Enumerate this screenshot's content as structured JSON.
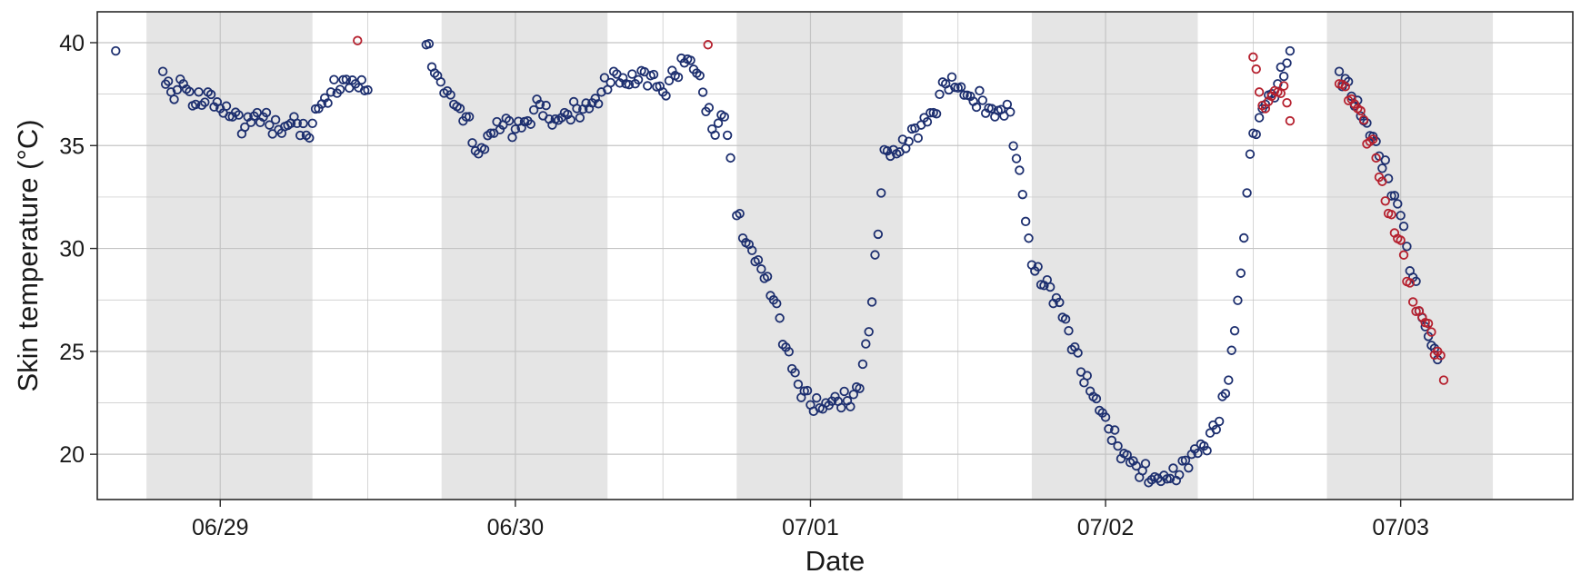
{
  "chart_data": {
    "type": "scatter",
    "xlabel": "Date",
    "ylabel": "Skin temperature (°C)",
    "x_ticks": [
      "06/29",
      "06/30",
      "07/01",
      "07/02",
      "07/03"
    ],
    "y_ticks": [
      20,
      25,
      30,
      35,
      40
    ],
    "xlim": [
      "06/28 14:00",
      "07/03 14:00"
    ],
    "ylim": [
      17.8,
      41.5
    ],
    "grid": true,
    "shaded_night_intervals": [
      [
        "06/28 18:00",
        "06/29 07:30"
      ],
      [
        "06/29 18:00",
        "06/30 07:30"
      ],
      [
        "06/30 18:00",
        "07/01 07:30"
      ],
      [
        "07/01 18:00",
        "07/02 07:30"
      ],
      [
        "07/02 18:00",
        "07/03 07:30"
      ]
    ],
    "colors": {
      "primary_points": "#1d2f6f",
      "highlight_points": "#b5202e",
      "night_shading": "#e5e5e5",
      "grid": "#c4c4c4",
      "frame": "#2a2a2a"
    },
    "series": [
      {
        "color": "#1d2f6f",
        "segments": [
          [
            [
              "06/28 15:30",
              39.6
            ]
          ],
          [
            [
              "06/28 19:20",
              38.6
            ],
            [
              "06/28 20:00",
              37.6
            ],
            [
              "06/28 21:00",
              38.0
            ],
            [
              "06/28 22:00",
              37.0
            ],
            [
              "06/28 23:00",
              37.6
            ],
            [
              "06/29 00:00",
              36.8
            ],
            [
              "06/29 01:00",
              36.4
            ],
            [
              "06/29 02:00",
              35.9
            ],
            [
              "06/29 03:00",
              36.6
            ],
            [
              "06/29 04:00",
              36.0
            ],
            [
              "06/29 05:00",
              35.6
            ],
            [
              "06/29 06:00",
              36.4
            ],
            [
              "06/29 07:00",
              35.5
            ],
            [
              "06/29 08:00",
              36.8
            ],
            [
              "06/29 09:00",
              37.6
            ],
            [
              "06/29 10:00",
              38.2
            ],
            [
              "06/29 11:00",
              38.0
            ],
            [
              "06/29 12:00",
              37.7
            ]
          ],
          [
            [
              "06/29 16:45",
              39.9
            ],
            [
              "06/29 17:40",
              38.4
            ],
            [
              "06/29 19:00",
              37.0
            ],
            [
              "06/29 20:00",
              36.4
            ],
            [
              "06/29 21:00",
              34.6
            ],
            [
              "06/29 22:00",
              35.6
            ],
            [
              "06/29 23:00",
              36.0
            ],
            [
              "06/30 00:00",
              35.8
            ],
            [
              "06/30 01:00",
              36.2
            ],
            [
              "06/30 02:00",
              37.0
            ],
            [
              "06/30 03:00",
              36.0
            ],
            [
              "06/30 04:00",
              36.6
            ],
            [
              "06/30 05:00",
              36.8
            ],
            [
              "06/30 06:00",
              36.8
            ],
            [
              "06/30 07:00",
              37.6
            ],
            [
              "06/30 08:00",
              38.6
            ],
            [
              "06/30 09:00",
              38.0
            ],
            [
              "06/30 10:00",
              38.2
            ],
            [
              "06/30 11:00",
              38.4
            ],
            [
              "06/30 12:00",
              37.6
            ],
            [
              "06/30 13:00",
              38.4
            ],
            [
              "06/30 14:00",
              39.2
            ],
            [
              "06/30 15:00",
              38.4
            ],
            [
              "06/30 16:00",
              35.8
            ],
            [
              "06/30 17:00",
              36.4
            ],
            [
              "06/30 17:30",
              34.4
            ]
          ],
          [
            [
              "06/30 18:00",
              31.6
            ],
            [
              "06/30 19:00",
              30.2
            ],
            [
              "06/30 20:00",
              29.0
            ],
            [
              "06/30 21:00",
              27.5
            ],
            [
              "06/30 22:00",
              25.2
            ],
            [
              "06/30 23:00",
              23.4
            ],
            [
              "07/01 00:00",
              22.4
            ],
            [
              "07/01 01:00",
              22.2
            ],
            [
              "07/01 02:00",
              22.8
            ],
            [
              "07/01 03:00",
              22.6
            ],
            [
              "07/01 04:00",
              23.2
            ],
            [
              "07/01 05:00",
              27.4
            ],
            [
              "07/01 06:00",
              34.8
            ],
            [
              "07/01 07:00",
              34.6
            ],
            [
              "07/01 08:00",
              35.2
            ],
            [
              "07/01 09:00",
              36.0
            ],
            [
              "07/01 10:00",
              36.6
            ],
            [
              "07/01 11:00",
              38.0
            ],
            [
              "07/01 12:00",
              37.8
            ],
            [
              "07/01 13:00",
              37.4
            ],
            [
              "07/01 14:00",
              37.2
            ],
            [
              "07/01 15:00",
              36.4
            ],
            [
              "07/01 16:00",
              37.0
            ],
            [
              "07/01 17:00",
              33.8
            ],
            [
              "07/01 18:00",
              29.2
            ],
            [
              "07/01 19:00",
              28.2
            ],
            [
              "07/01 20:00",
              27.6
            ],
            [
              "07/01 21:00",
              26.0
            ],
            [
              "07/01 22:00",
              24.0
            ],
            [
              "07/01 23:00",
              22.8
            ],
            [
              "07/02 00:00",
              21.8
            ],
            [
              "07/02 01:00",
              20.4
            ],
            [
              "07/02 02:00",
              19.6
            ],
            [
              "07/02 03:00",
              19.2
            ],
            [
              "07/02 04:00",
              18.9
            ],
            [
              "07/02 05:00",
              18.8
            ],
            [
              "07/02 06:00",
              19.0
            ],
            [
              "07/02 07:00",
              20.0
            ],
            [
              "07/02 08:00",
              20.4
            ],
            [
              "07/02 09:00",
              21.2
            ],
            [
              "07/02 10:00",
              23.6
            ],
            [
              "07/02 11:00",
              28.8
            ],
            [
              "07/02 11:30",
              32.7
            ],
            [
              "07/02 12:00",
              35.6
            ],
            [
              "07/02 13:00",
              37.0
            ],
            [
              "07/02 14:00",
              38.0
            ],
            [
              "07/02 15:00",
              39.6
            ]
          ],
          [
            [
              "07/02 19:00",
              38.6
            ],
            [
              "07/02 20:00",
              37.4
            ],
            [
              "07/02 21:00",
              36.2
            ],
            [
              "07/02 22:00",
              35.2
            ],
            [
              "07/02 23:00",
              33.4
            ],
            [
              "07/03 00:00",
              31.6
            ],
            [
              "07/03 01:00",
              28.6
            ],
            [
              "07/03 02:00",
              26.2
            ],
            [
              "07/03 03:00",
              24.6
            ]
          ]
        ]
      },
      {
        "color": "#b5202e",
        "segments": [
          [
            [
              "06/29 11:10",
              40.1
            ]
          ],
          [
            [
              "06/30 15:40",
              39.9
            ]
          ],
          [
            [
              "07/02 12:00",
              39.3
            ],
            [
              "07/02 12:30",
              37.6
            ],
            [
              "07/02 13:00",
              36.8
            ],
            [
              "07/02 13:30",
              37.4
            ],
            [
              "07/02 14:00",
              37.6
            ],
            [
              "07/02 14:30",
              37.9
            ],
            [
              "07/02 15:00",
              36.2
            ]
          ],
          [
            [
              "07/02 19:00",
              38.0
            ],
            [
              "07/02 20:30",
              36.8
            ],
            [
              "07/02 21:30",
              35.2
            ],
            [
              "07/02 22:00",
              34.4
            ],
            [
              "07/02 23:00",
              31.7
            ],
            [
              "07/03 00:00",
              30.4
            ],
            [
              "07/03 01:00",
              27.4
            ],
            [
              "07/03 02:00",
              26.4
            ],
            [
              "07/03 03:00",
              25.0
            ],
            [
              "07/03 03:30",
              23.6
            ]
          ]
        ]
      }
    ]
  }
}
